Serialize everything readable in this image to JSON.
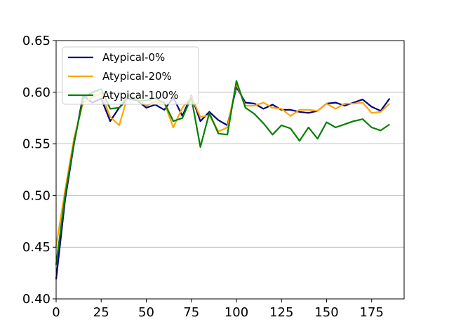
{
  "chart_data": {
    "type": "line",
    "title": "",
    "xlabel": "",
    "ylabel": "",
    "xlim": [
      0,
      193
    ],
    "ylim": [
      0.4,
      0.65
    ],
    "xticks": [
      "0",
      "25",
      "50",
      "75",
      "100",
      "125",
      "150",
      "175"
    ],
    "yticks": [
      "0.40",
      "0.45",
      "0.50",
      "0.55",
      "0.60",
      "0.65"
    ],
    "grid": "horizontal",
    "legend_position": "top-left",
    "x": [
      0,
      5,
      10,
      15,
      20,
      25,
      30,
      35,
      40,
      45,
      50,
      55,
      60,
      65,
      70,
      75,
      80,
      85,
      90,
      95,
      100,
      105,
      110,
      115,
      120,
      125,
      130,
      135,
      140,
      145,
      150,
      155,
      160,
      165,
      170,
      175,
      180,
      185
    ],
    "series": [
      {
        "name": "Atypical-0%",
        "color": "#000080",
        "values": [
          0.419,
          0.496,
          0.551,
          0.597,
          0.59,
          0.594,
          0.572,
          0.585,
          0.594,
          0.592,
          0.585,
          0.588,
          0.583,
          0.595,
          0.577,
          0.597,
          0.572,
          0.581,
          0.573,
          0.568,
          0.605,
          0.59,
          0.589,
          0.584,
          0.588,
          0.583,
          0.583,
          0.581,
          0.58,
          0.582,
          0.589,
          0.59,
          0.587,
          0.59,
          0.593,
          0.586,
          0.582,
          0.594
        ]
      },
      {
        "name": "Atypical-20%",
        "color": "#ffa500",
        "values": [
          0.451,
          0.505,
          0.556,
          0.59,
          0.595,
          0.599,
          0.576,
          0.568,
          0.598,
          0.593,
          0.587,
          0.591,
          0.59,
          0.566,
          0.585,
          0.596,
          0.576,
          0.578,
          0.562,
          0.566,
          0.608,
          0.587,
          0.587,
          0.59,
          0.585,
          0.584,
          0.577,
          0.583,
          0.583,
          0.582,
          0.589,
          0.584,
          0.589,
          0.589,
          0.59,
          0.58,
          0.581,
          0.589
        ]
      },
      {
        "name": "Atypical-100%",
        "color": "#008000",
        "values": [
          0.433,
          0.5,
          0.552,
          0.594,
          0.6,
          0.603,
          0.584,
          0.585,
          0.597,
          0.592,
          0.592,
          0.594,
          0.59,
          0.572,
          0.575,
          0.595,
          0.547,
          0.58,
          0.56,
          0.559,
          0.611,
          0.585,
          0.579,
          0.57,
          0.559,
          0.568,
          0.565,
          0.553,
          0.566,
          0.555,
          0.571,
          0.566,
          0.569,
          0.572,
          0.574,
          0.566,
          0.563,
          0.569
        ]
      }
    ]
  }
}
